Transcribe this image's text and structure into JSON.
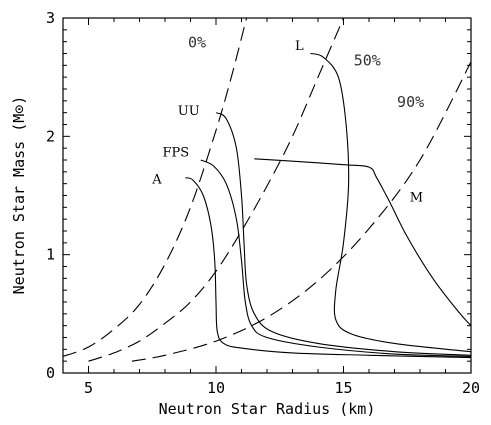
{
  "chart_data": {
    "type": "line",
    "title": "",
    "xlabel": "Neutron Star Radius (km)",
    "ylabel": "Neutron Star Mass (M⊙)",
    "xlim": [
      4,
      20
    ],
    "ylim": [
      0,
      3
    ],
    "x_ticks": [
      5,
      10,
      15,
      20
    ],
    "y_ticks": [
      0,
      1,
      2,
      3
    ],
    "grid": false,
    "series": [
      {
        "name": "0%",
        "style": "dashed",
        "points": [
          [
            4,
            0.14
          ],
          [
            5,
            0.22
          ],
          [
            6,
            0.37
          ],
          [
            7,
            0.58
          ],
          [
            8,
            0.92
          ],
          [
            9,
            1.4
          ],
          [
            10,
            2.05
          ],
          [
            10.6,
            2.5
          ],
          [
            11.2,
            3.0
          ]
        ]
      },
      {
        "name": "50%",
        "style": "dashed",
        "points": [
          [
            5,
            0.1
          ],
          [
            6,
            0.17
          ],
          [
            7,
            0.27
          ],
          [
            8,
            0.42
          ],
          [
            9,
            0.6
          ],
          [
            10,
            0.86
          ],
          [
            11,
            1.2
          ],
          [
            12,
            1.58
          ],
          [
            13,
            2.0
          ],
          [
            14,
            2.5
          ],
          [
            15,
            3.0
          ]
        ]
      },
      {
        "name": "90%",
        "style": "dashed",
        "points": [
          [
            6.7,
            0.1
          ],
          [
            8,
            0.15
          ],
          [
            10,
            0.27
          ],
          [
            12,
            0.47
          ],
          [
            14,
            0.78
          ],
          [
            16,
            1.22
          ],
          [
            18,
            1.8
          ],
          [
            20,
            2.63
          ]
        ]
      },
      {
        "name": "A",
        "style": "solid",
        "points": [
          [
            8.8,
            1.65
          ],
          [
            9.1,
            1.63
          ],
          [
            9.5,
            1.5
          ],
          [
            9.8,
            1.25
          ],
          [
            9.95,
            0.95
          ],
          [
            10.0,
            0.6
          ],
          [
            10.05,
            0.35
          ],
          [
            10.3,
            0.25
          ],
          [
            11,
            0.21
          ],
          [
            13,
            0.17
          ],
          [
            16,
            0.15
          ],
          [
            20,
            0.13
          ]
        ]
      },
      {
        "name": "FPS",
        "style": "solid",
        "points": [
          [
            9.4,
            1.8
          ],
          [
            9.9,
            1.75
          ],
          [
            10.4,
            1.6
          ],
          [
            10.8,
            1.3
          ],
          [
            11.0,
            0.95
          ],
          [
            11.15,
            0.6
          ],
          [
            11.4,
            0.4
          ],
          [
            12,
            0.3
          ],
          [
            14,
            0.22
          ],
          [
            17,
            0.16
          ],
          [
            20,
            0.14
          ]
        ]
      },
      {
        "name": "UU",
        "style": "solid",
        "points": [
          [
            10.0,
            2.2
          ],
          [
            10.4,
            2.15
          ],
          [
            10.8,
            1.9
          ],
          [
            11.0,
            1.5
          ],
          [
            11.1,
            1.1
          ],
          [
            11.2,
            0.75
          ],
          [
            11.5,
            0.5
          ],
          [
            12.2,
            0.35
          ],
          [
            14,
            0.25
          ],
          [
            17,
            0.18
          ],
          [
            20,
            0.15
          ]
        ]
      },
      {
        "name": "L",
        "style": "solid",
        "points": [
          [
            13.7,
            2.7
          ],
          [
            14.2,
            2.67
          ],
          [
            14.8,
            2.5
          ],
          [
            15.1,
            2.1
          ],
          [
            15.2,
            1.6
          ],
          [
            15.0,
            1.1
          ],
          [
            14.7,
            0.7
          ],
          [
            14.7,
            0.45
          ],
          [
            15.3,
            0.33
          ],
          [
            17,
            0.25
          ],
          [
            20,
            0.18
          ]
        ]
      },
      {
        "name": "M",
        "style": "solid",
        "points": [
          [
            11.5,
            1.81
          ],
          [
            13,
            1.79
          ],
          [
            15,
            1.76
          ],
          [
            16,
            1.74
          ],
          [
            16.3,
            1.65
          ],
          [
            16.8,
            1.45
          ],
          [
            17.5,
            1.15
          ],
          [
            18.5,
            0.8
          ],
          [
            19.5,
            0.52
          ],
          [
            20,
            0.4
          ]
        ]
      }
    ],
    "labels": [
      {
        "text": "0%",
        "x": 8.9,
        "y": 2.75
      },
      {
        "text": "50%",
        "x": 15.4,
        "y": 2.6
      },
      {
        "text": "90%",
        "x": 17.1,
        "y": 2.25
      },
      {
        "text": "L",
        "x": 13.1,
        "y": 2.73
      },
      {
        "text": "UU",
        "x": 8.5,
        "y": 2.18
      },
      {
        "text": "FPS",
        "x": 7.9,
        "y": 1.83
      },
      {
        "text": "A",
        "x": 7.5,
        "y": 1.6
      },
      {
        "text": "M",
        "x": 17.6,
        "y": 1.45
      }
    ]
  }
}
